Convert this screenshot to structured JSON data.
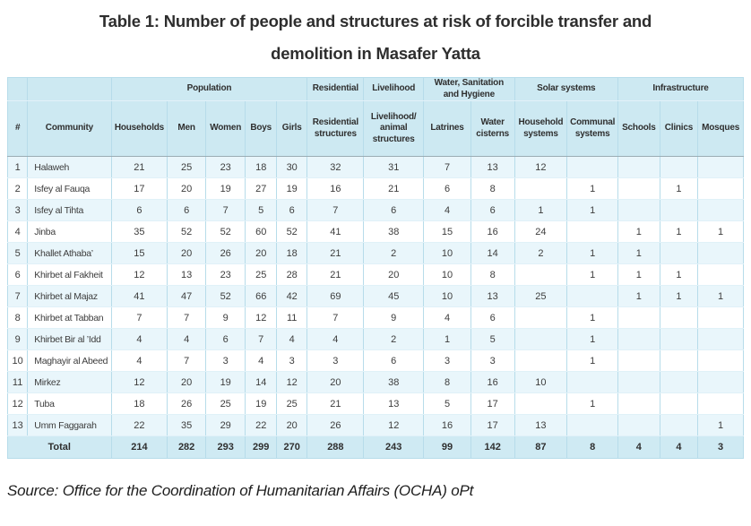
{
  "title": {
    "line1": "Table 1: Number of people and structures at risk of forcible transfer and",
    "line2": "demolition in Masafer Yatta"
  },
  "source": "Source: Office for the Coordination of Humanitarian Affairs (OCHA) oPt",
  "colors": {
    "header_bg": "#cde9f2",
    "total_bg": "#cfeaf3",
    "row_alt_bg": "#e9f6fb",
    "border": "#b7dcea",
    "outer_border": "#8fc3d9"
  },
  "chart_data": {
    "type": "table",
    "title": "Table 1: Number of people and structures at risk of forcible transfer and demolition in Masafer Yatta",
    "group_headers": [
      {
        "label": "",
        "colspan": 1
      },
      {
        "label": "",
        "colspan": 1
      },
      {
        "label": "Population",
        "colspan": 5
      },
      {
        "label": "Residential",
        "colspan": 1
      },
      {
        "label": "Livelihood",
        "colspan": 1
      },
      {
        "label": "Water, Sanitation and Hygiene",
        "colspan": 2
      },
      {
        "label": "Solar systems",
        "colspan": 2
      },
      {
        "label": "Infrastructure",
        "colspan": 3
      }
    ],
    "columns": [
      "#",
      "Community",
      "Households",
      "Men",
      "Women",
      "Boys",
      "Girls",
      "Residential structures",
      "Livelihood/ animal structures",
      "Latrines",
      "Water cisterns",
      "Household systems",
      "Communal systems",
      "Schools",
      "Clinics",
      "Mosques"
    ],
    "rows": [
      [
        "1",
        "Halaweh",
        "21",
        "25",
        "23",
        "18",
        "30",
        "32",
        "31",
        "7",
        "13",
        "12",
        "",
        "",
        "",
        ""
      ],
      [
        "2",
        "Isfey al Fauqa",
        "17",
        "20",
        "19",
        "27",
        "19",
        "16",
        "21",
        "6",
        "8",
        "",
        "1",
        "",
        "1",
        ""
      ],
      [
        "3",
        "Isfey al Tihta",
        "6",
        "6",
        "7",
        "5",
        "6",
        "7",
        "6",
        "4",
        "6",
        "1",
        "1",
        "",
        "",
        ""
      ],
      [
        "4",
        "Jinba",
        "35",
        "52",
        "52",
        "60",
        "52",
        "41",
        "38",
        "15",
        "16",
        "24",
        "",
        "1",
        "1",
        "1"
      ],
      [
        "5",
        "Khallet Athaba’",
        "15",
        "20",
        "26",
        "20",
        "18",
        "21",
        "2",
        "10",
        "14",
        "2",
        "1",
        "1",
        "",
        ""
      ],
      [
        "6",
        "Khirbet al Fakheit",
        "12",
        "13",
        "23",
        "25",
        "28",
        "21",
        "20",
        "10",
        "8",
        "",
        "1",
        "1",
        "1",
        ""
      ],
      [
        "7",
        "Khirbet al Majaz",
        "41",
        "47",
        "52",
        "66",
        "42",
        "69",
        "45",
        "10",
        "13",
        "25",
        "",
        "1",
        "1",
        "1"
      ],
      [
        "8",
        "Khirbet at Tabban",
        "7",
        "7",
        "9",
        "12",
        "11",
        "7",
        "9",
        "4",
        "6",
        "",
        "1",
        "",
        "",
        ""
      ],
      [
        "9",
        "Khirbet Bir al ’Idd",
        "4",
        "4",
        "6",
        "7",
        "4",
        "4",
        "2",
        "1",
        "5",
        "",
        "1",
        "",
        "",
        ""
      ],
      [
        "10",
        "Maghayir al Abeed",
        "4",
        "7",
        "3",
        "4",
        "3",
        "3",
        "6",
        "3",
        "3",
        "",
        "1",
        "",
        "",
        ""
      ],
      [
        "11",
        "Mirkez",
        "12",
        "20",
        "19",
        "14",
        "12",
        "20",
        "38",
        "8",
        "16",
        "10",
        "",
        "",
        "",
        ""
      ],
      [
        "12",
        "Tuba",
        "18",
        "26",
        "25",
        "19",
        "25",
        "21",
        "13",
        "5",
        "17",
        "",
        "1",
        "",
        "",
        ""
      ],
      [
        "13",
        "Umm Faggarah",
        "22",
        "35",
        "29",
        "22",
        "20",
        "26",
        "12",
        "16",
        "17",
        "13",
        "",
        "",
        "",
        "1"
      ]
    ],
    "total_label": "Total",
    "totals": [
      "214",
      "282",
      "293",
      "299",
      "270",
      "288",
      "243",
      "99",
      "142",
      "87",
      "8",
      "4",
      "4",
      "3"
    ]
  }
}
